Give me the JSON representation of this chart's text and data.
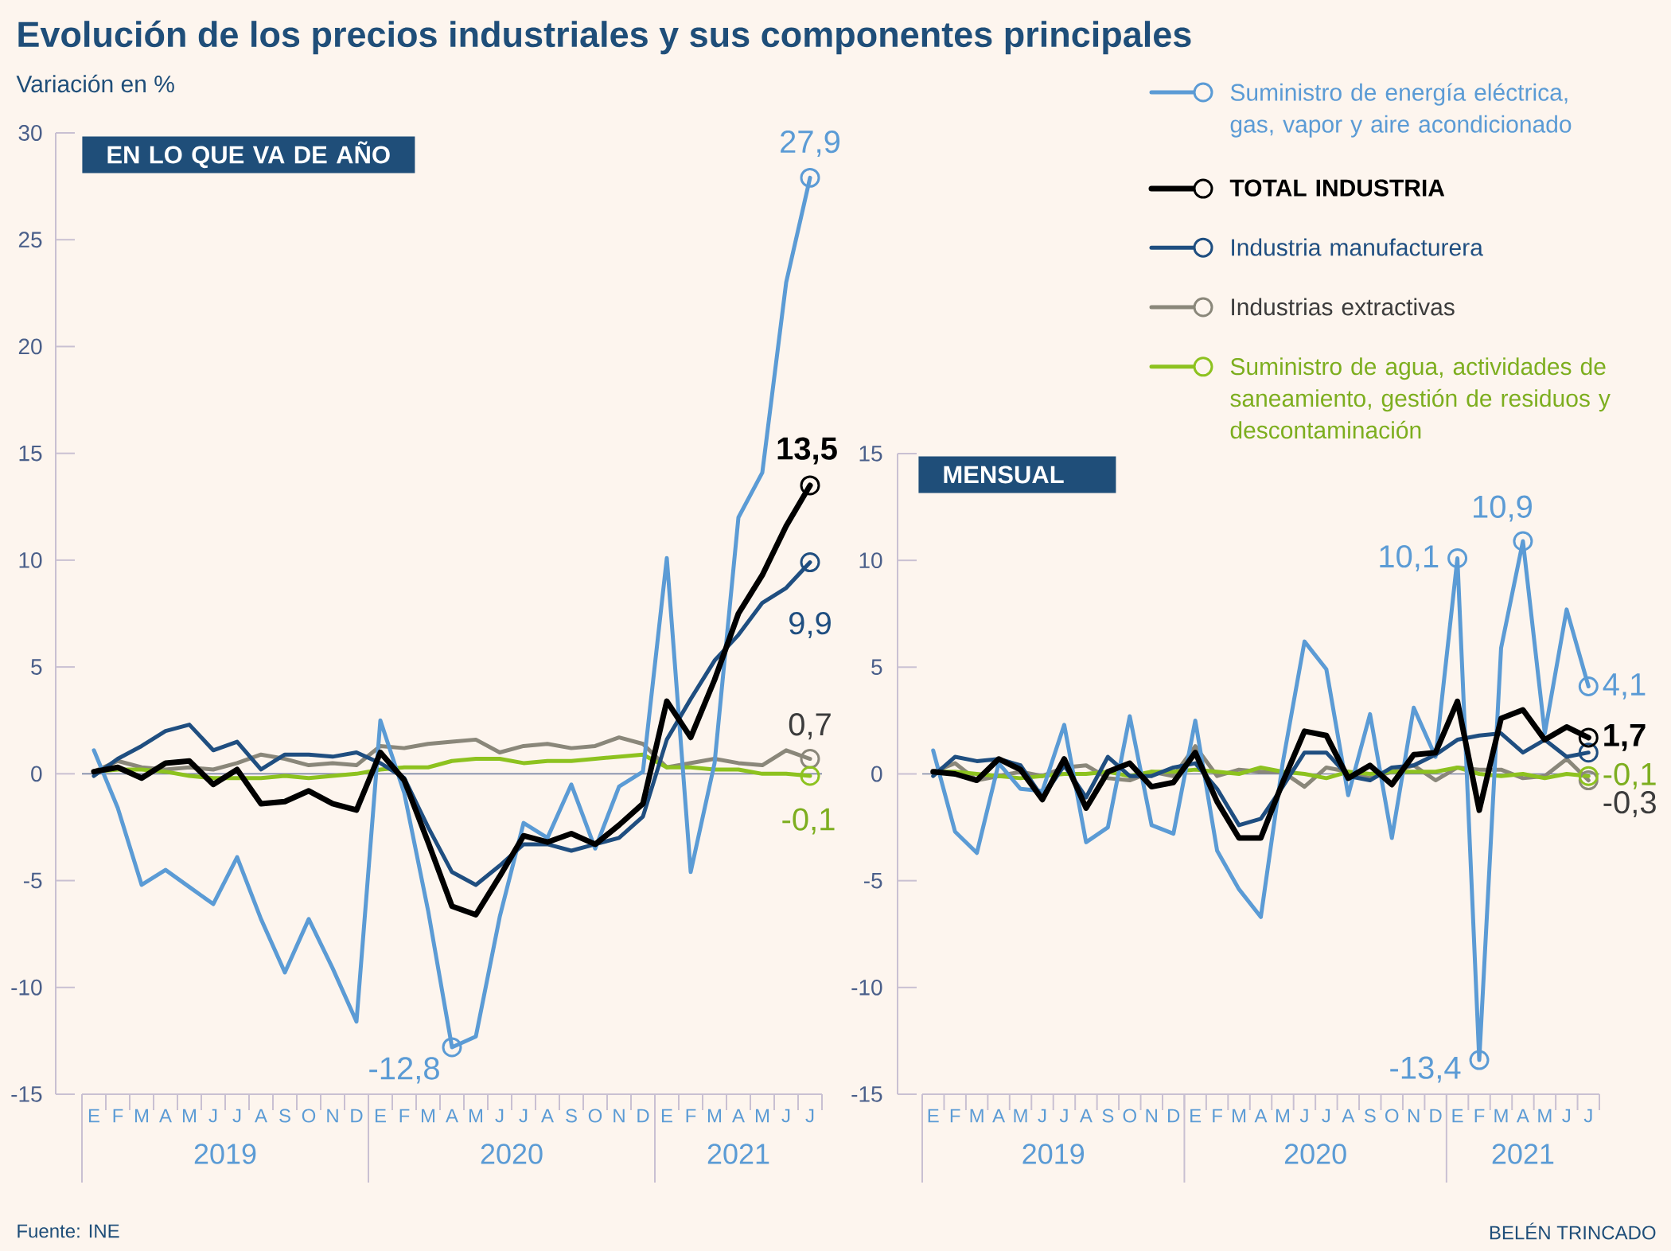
{
  "chart_data": [
    {
      "type": "line",
      "title": "Evolución de los precios industriales y sus componentes principales",
      "ylabel": "Variación en %",
      "subtitle": "EN LO QUE VA DE AÑO",
      "categories": [
        "E",
        "F",
        "M",
        "A",
        "M",
        "J",
        "J",
        "A",
        "S",
        "O",
        "N",
        "D",
        "E",
        "F",
        "M",
        "A",
        "M",
        "J",
        "J",
        "A",
        "S",
        "O",
        "N",
        "D",
        "E",
        "F",
        "M",
        "A",
        "M",
        "J",
        "J"
      ],
      "ylim": [
        -15,
        30
      ],
      "yticks": [
        -15,
        -10,
        -5,
        0,
        5,
        10,
        15,
        20,
        25,
        30
      ],
      "ref_lines": [
        {
          "axis": "y",
          "value": 0,
          "color": "#7D87A6"
        }
      ],
      "series": [
        {
          "color": "#5B9BD5",
          "values": [
            1.1,
            -1.6,
            -5.2,
            -4.5,
            -5.3,
            -6.1,
            -3.9,
            -6.8,
            -9.3,
            -6.8,
            -9.1,
            -11.6,
            2.5,
            -0.9,
            -6.4,
            -12.8,
            -12.3,
            -6.7,
            -2.3,
            -3.0,
            -0.5,
            -3.5,
            -0.6,
            0.1,
            10.1,
            -4.6,
            0.5,
            12.0,
            14.1,
            23.0,
            27.9
          ],
          "value_labels": [
            null,
            null,
            null,
            null,
            null,
            null,
            null,
            null,
            null,
            null,
            null,
            null,
            null,
            null,
            null,
            "-12,8",
            null,
            null,
            null,
            null,
            null,
            null,
            null,
            null,
            null,
            null,
            null,
            null,
            null,
            null,
            "27,9"
          ]
        },
        {
          "color": "#000000",
          "values": [
            0.1,
            0.3,
            -0.2,
            0.5,
            0.6,
            -0.5,
            0.2,
            -1.4,
            -1.3,
            -0.8,
            -1.4,
            -1.7,
            1.0,
            -0.3,
            -3.2,
            -6.2,
            -6.6,
            -4.8,
            -2.9,
            -3.2,
            -2.8,
            -3.3,
            -2.4,
            -1.4,
            3.4,
            1.7,
            4.4,
            7.5,
            9.3,
            11.6,
            13.5
          ],
          "value_labels": [
            null,
            null,
            null,
            null,
            null,
            null,
            null,
            null,
            null,
            null,
            null,
            null,
            null,
            null,
            null,
            null,
            null,
            null,
            null,
            null,
            null,
            null,
            null,
            null,
            null,
            null,
            null,
            null,
            null,
            null,
            "13,5"
          ]
        },
        {
          "color": "#1F4E80",
          "values": [
            -0.1,
            0.7,
            1.3,
            2.0,
            2.3,
            1.1,
            1.5,
            0.2,
            0.9,
            0.9,
            0.8,
            1.0,
            0.5,
            -0.2,
            -2.5,
            -4.6,
            -5.2,
            -4.3,
            -3.3,
            -3.3,
            -3.6,
            -3.3,
            -3.0,
            -2.0,
            1.6,
            3.5,
            5.3,
            6.5,
            8.0,
            8.7,
            9.9
          ],
          "value_labels": [
            null,
            null,
            null,
            null,
            null,
            null,
            null,
            null,
            null,
            null,
            null,
            null,
            null,
            null,
            null,
            null,
            null,
            null,
            null,
            null,
            null,
            null,
            null,
            null,
            null,
            null,
            null,
            null,
            null,
            null,
            "9,9"
          ]
        },
        {
          "color": "#8A877A",
          "values": [
            0.1,
            0.6,
            0.3,
            0.2,
            0.3,
            0.2,
            0.5,
            0.9,
            0.7,
            0.4,
            0.5,
            0.4,
            1.3,
            1.2,
            1.4,
            1.5,
            1.6,
            1.0,
            1.3,
            1.4,
            1.2,
            1.3,
            1.7,
            1.4,
            0.3,
            0.5,
            0.7,
            0.5,
            0.4,
            1.1,
            0.7
          ],
          "value_labels": [
            null,
            null,
            null,
            null,
            null,
            null,
            null,
            null,
            null,
            null,
            null,
            null,
            null,
            null,
            null,
            null,
            null,
            null,
            null,
            null,
            null,
            null,
            null,
            null,
            null,
            null,
            null,
            null,
            null,
            null,
            "0,7"
          ]
        },
        {
          "color": "#8DC21F",
          "values": [
            0.1,
            0.2,
            0.2,
            0.1,
            -0.1,
            -0.2,
            -0.2,
            -0.2,
            -0.1,
            -0.2,
            -0.1,
            0.0,
            0.2,
            0.3,
            0.3,
            0.6,
            0.7,
            0.7,
            0.5,
            0.6,
            0.6,
            0.7,
            0.8,
            0.9,
            0.3,
            0.3,
            0.2,
            0.2,
            0.0,
            0.0,
            -0.1
          ],
          "value_labels": [
            null,
            null,
            null,
            null,
            null,
            null,
            null,
            null,
            null,
            null,
            null,
            null,
            null,
            null,
            null,
            null,
            null,
            null,
            null,
            null,
            null,
            null,
            null,
            null,
            null,
            null,
            null,
            null,
            null,
            null,
            "-0,1"
          ]
        }
      ],
      "annotations": [
        "2019",
        "2020",
        "2021",
        "Fuente: INE"
      ]
    },
    {
      "type": "line",
      "subtitle": "MENSUAL",
      "categories": [
        "E",
        "F",
        "M",
        "A",
        "M",
        "J",
        "J",
        "A",
        "S",
        "O",
        "N",
        "D",
        "E",
        "F",
        "M",
        "A",
        "M",
        "J",
        "J",
        "A",
        "S",
        "O",
        "N",
        "D",
        "E",
        "F",
        "M",
        "A",
        "M",
        "J",
        "J"
      ],
      "ylim": [
        -15,
        15
      ],
      "yticks": [
        -15,
        -10,
        -5,
        0,
        5,
        10,
        15
      ],
      "legend": "top",
      "ref_lines": [
        {
          "axis": "y",
          "value": 0,
          "color": "#7D87A6"
        }
      ],
      "series": [
        {
          "name": "Suministro de energía eléctrica, gas, vapor y aire acondicionado",
          "color": "#5B9BD5",
          "values": [
            1.1,
            -2.7,
            -3.7,
            0.5,
            -0.7,
            -0.8,
            2.3,
            -3.2,
            -2.5,
            2.7,
            -2.4,
            -2.8,
            2.5,
            -3.6,
            -5.4,
            -6.7,
            0.5,
            6.2,
            4.9,
            -1.0,
            2.8,
            -3.0,
            3.1,
            0.8,
            10.1,
            -13.4,
            5.9,
            10.9,
            1.9,
            7.7,
            4.1
          ],
          "value_labels": [
            null,
            null,
            null,
            null,
            null,
            null,
            null,
            null,
            null,
            null,
            null,
            null,
            null,
            null,
            null,
            null,
            null,
            null,
            null,
            null,
            null,
            null,
            null,
            null,
            "10,1",
            "-13,4",
            null,
            "10,9",
            null,
            null,
            "4,1"
          ]
        },
        {
          "name": "TOTAL INDUSTRIA",
          "color": "#000000",
          "values": [
            0.1,
            0.0,
            -0.3,
            0.7,
            0.2,
            -1.2,
            0.7,
            -1.6,
            0.1,
            0.5,
            -0.6,
            -0.4,
            1.0,
            -1.3,
            -3.0,
            -3.0,
            -0.4,
            2.0,
            1.8,
            -0.2,
            0.4,
            -0.5,
            0.9,
            1.0,
            3.4,
            -1.7,
            2.6,
            3.0,
            1.6,
            2.2,
            1.7
          ],
          "value_labels": [
            null,
            null,
            null,
            null,
            null,
            null,
            null,
            null,
            null,
            null,
            null,
            null,
            null,
            null,
            null,
            null,
            null,
            null,
            null,
            null,
            null,
            null,
            null,
            null,
            null,
            null,
            null,
            null,
            null,
            null,
            "1,7"
          ]
        },
        {
          "name": "Industria manufacturera",
          "color": "#1F4E80",
          "values": [
            -0.1,
            0.8,
            0.6,
            0.7,
            0.4,
            -1.1,
            0.4,
            -1.1,
            0.8,
            -0.1,
            -0.1,
            0.3,
            0.5,
            -0.7,
            -2.4,
            -2.1,
            -0.6,
            1.0,
            1.0,
            -0.1,
            -0.3,
            0.3,
            0.4,
            0.9,
            1.6,
            1.8,
            1.9,
            1.0,
            1.6,
            0.8,
            1.0
          ]
        },
        {
          "name": "Industrias extractivas",
          "color": "#8A877A",
          "values": [
            0.1,
            0.5,
            -0.3,
            -0.1,
            0.1,
            -0.1,
            0.3,
            0.4,
            -0.2,
            -0.3,
            0.1,
            -0.1,
            1.3,
            -0.1,
            0.2,
            0.1,
            0.1,
            -0.6,
            0.3,
            0.1,
            -0.2,
            0.1,
            0.4,
            -0.3,
            0.3,
            0.2,
            0.2,
            -0.2,
            -0.1,
            0.7,
            -0.3
          ],
          "value_labels": [
            null,
            null,
            null,
            null,
            null,
            null,
            null,
            null,
            null,
            null,
            null,
            null,
            null,
            null,
            null,
            null,
            null,
            null,
            null,
            null,
            null,
            null,
            null,
            null,
            null,
            null,
            null,
            null,
            null,
            null,
            "-0,3"
          ]
        },
        {
          "name": "Suministro de agua, actividades de saneamiento, gestión de residuos y descontaminación",
          "color": "#8DC21F",
          "values": [
            0.1,
            0.1,
            0.0,
            -0.1,
            -0.2,
            -0.1,
            0.0,
            0.0,
            0.1,
            -0.1,
            0.1,
            0.1,
            0.2,
            0.1,
            0.0,
            0.3,
            0.1,
            0.0,
            -0.2,
            0.1,
            0.0,
            0.1,
            0.1,
            0.1,
            0.3,
            0.0,
            -0.1,
            0.0,
            -0.2,
            0.0,
            -0.1
          ],
          "value_labels": [
            null,
            null,
            null,
            null,
            null,
            null,
            null,
            null,
            null,
            null,
            null,
            null,
            null,
            null,
            null,
            null,
            null,
            null,
            null,
            null,
            null,
            null,
            null,
            null,
            null,
            null,
            null,
            null,
            null,
            null,
            "-0,1"
          ]
        }
      ],
      "annotations": [
        "2019",
        "2020",
        "2021",
        "BELÉN TRINCADO"
      ]
    }
  ]
}
